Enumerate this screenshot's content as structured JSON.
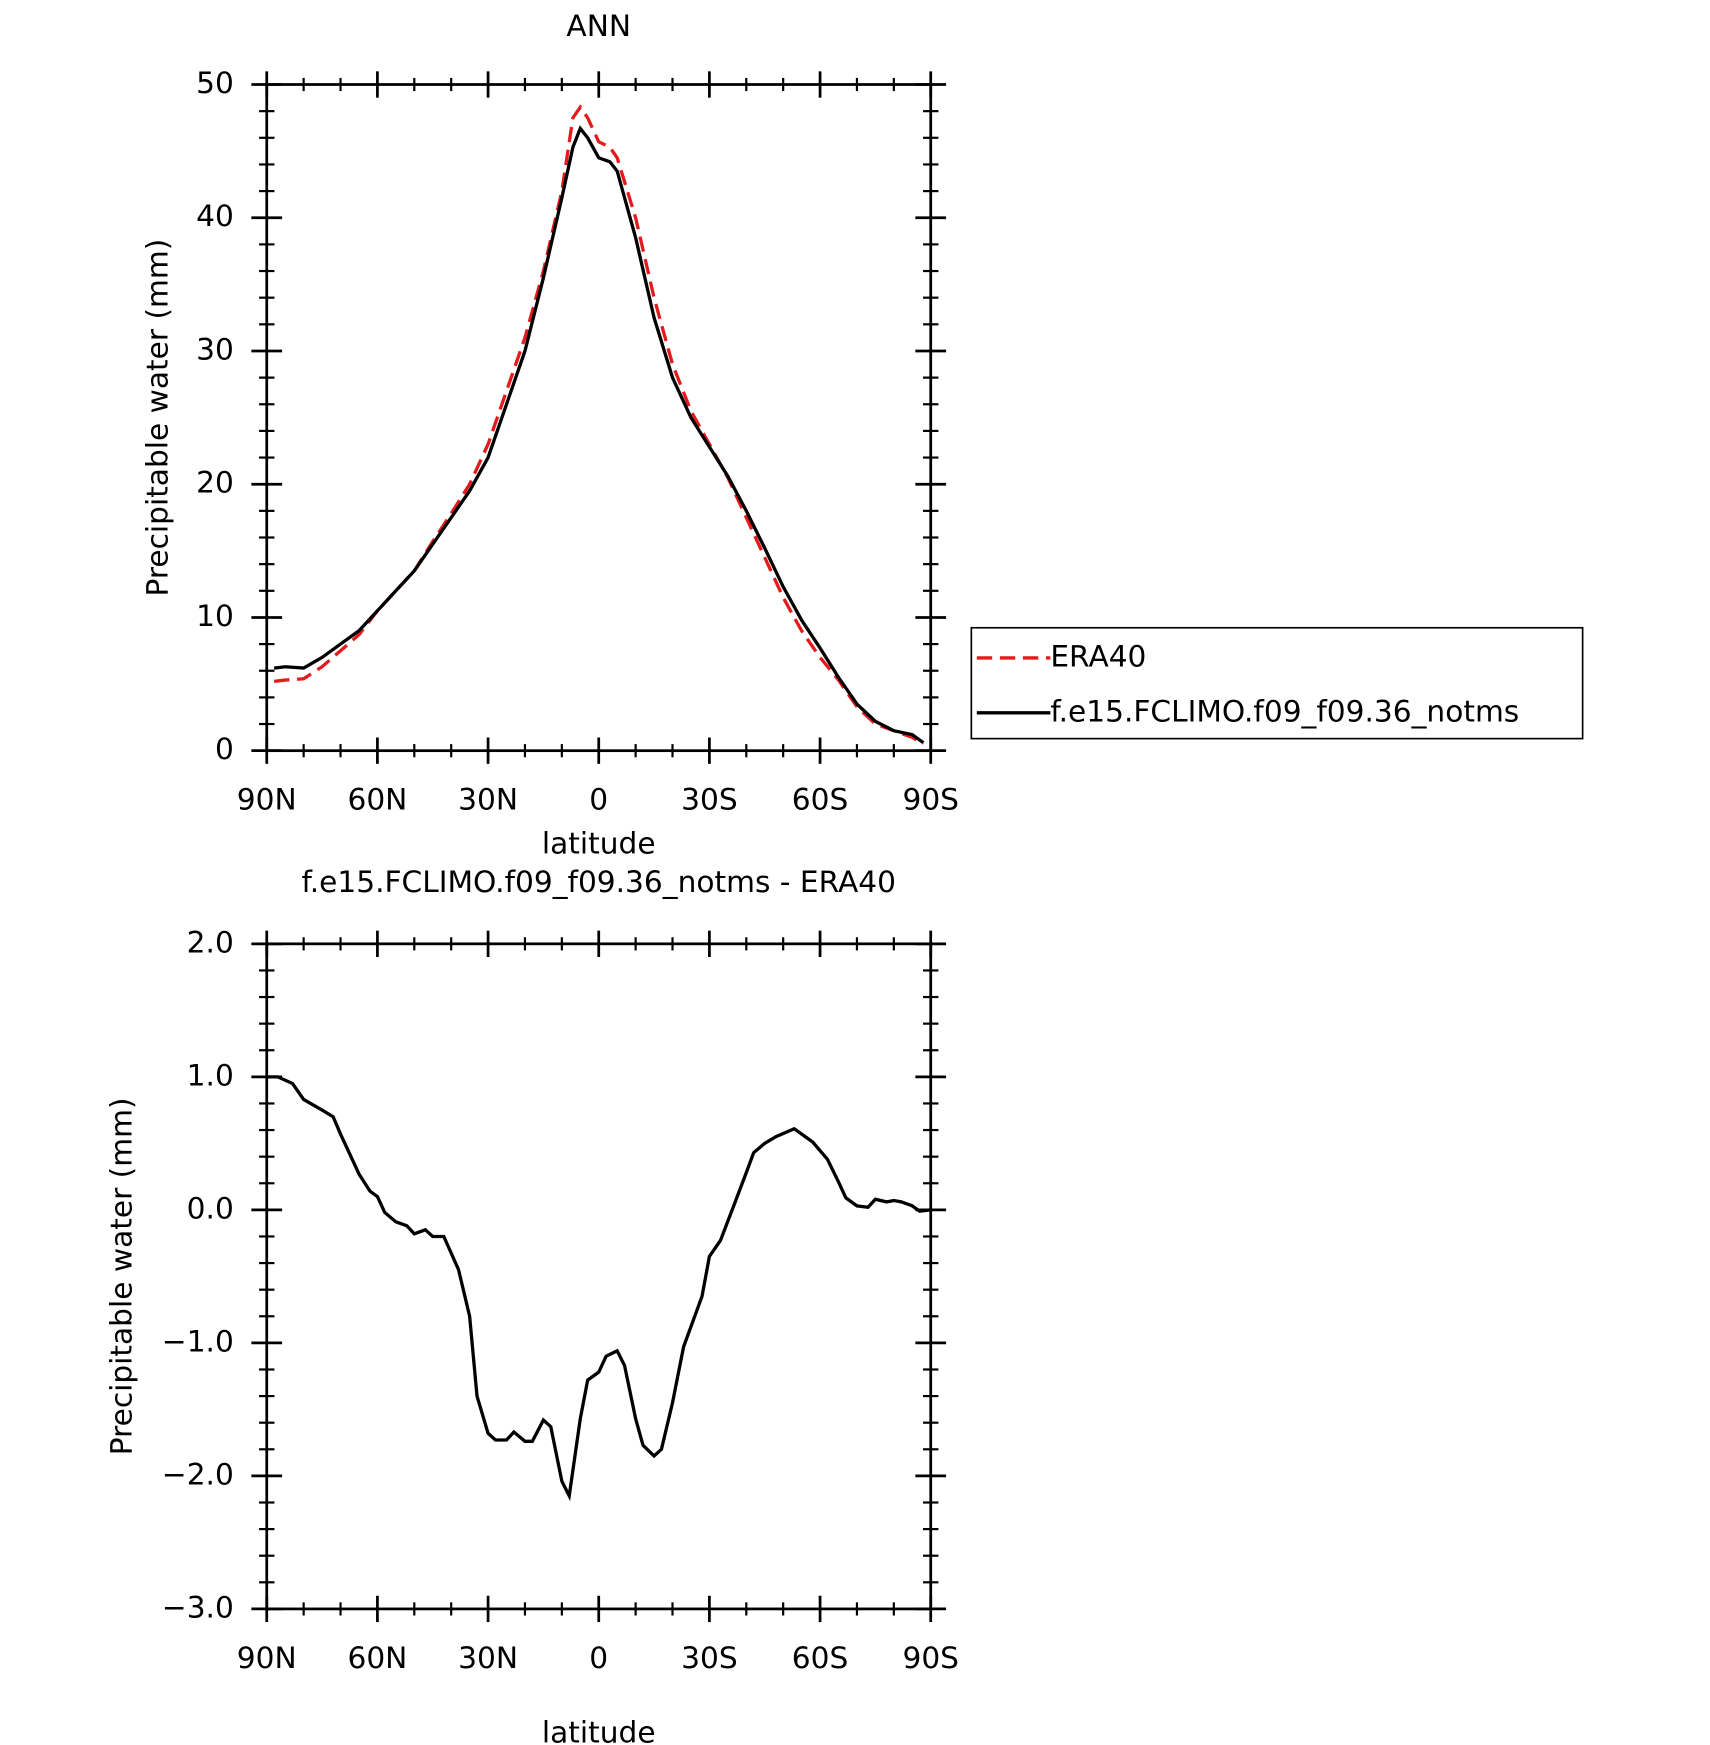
{
  "chart_data": [
    {
      "type": "line",
      "title": "ANN",
      "xlabel": "latitude",
      "ylabel": "Precipitable water (mm)",
      "xlim": [
        90,
        -90
      ],
      "xticks": [
        {
          "value": 90,
          "label": "90N"
        },
        {
          "value": 60,
          "label": "60N"
        },
        {
          "value": 30,
          "label": "30N"
        },
        0,
        {
          "value": -30,
          "label": "30S"
        },
        {
          "value": -60,
          "label": "60S"
        },
        {
          "value": -90,
          "label": "90S"
        }
      ],
      "ylim": [
        0,
        50
      ],
      "yticks": [
        0,
        10,
        20,
        30,
        40,
        50
      ],
      "legend": "right",
      "x": [
        88,
        85,
        80,
        75,
        70,
        65,
        60,
        55,
        50,
        45,
        40,
        35,
        30,
        25,
        20,
        15,
        10,
        7,
        5,
        3,
        0,
        -3,
        -5,
        -10,
        -15,
        -20,
        -25,
        -30,
        -35,
        -40,
        -45,
        -50,
        -55,
        -60,
        -65,
        -70,
        -75,
        -80,
        -85,
        -88
      ],
      "series": [
        {
          "name": "ERA40",
          "color": "#e41a1c",
          "dashed": true,
          "values": [
            5.2,
            5.3,
            5.4,
            6.3,
            7.5,
            8.7,
            10.5,
            12.0,
            13.5,
            15.7,
            17.8,
            20.0,
            23.0,
            27.0,
            31.0,
            36.0,
            42.0,
            47.5,
            48.3,
            47.5,
            45.7,
            45.3,
            44.5,
            40.0,
            34.0,
            29.0,
            25.5,
            23.0,
            20.5,
            17.5,
            14.5,
            11.5,
            9.0,
            7.0,
            5.3,
            3.3,
            2.0,
            1.5,
            1.0,
            0.5
          ]
        },
        {
          "name": "f.e15.FCLIMO.f09_f09.36_notms",
          "color": "#000000",
          "dashed": false,
          "values": [
            6.2,
            6.3,
            6.2,
            7.0,
            8.0,
            9.0,
            10.5,
            12.0,
            13.5,
            15.5,
            17.5,
            19.5,
            22.0,
            26.0,
            30.0,
            35.5,
            41.5,
            45.3,
            46.7,
            46.0,
            44.5,
            44.2,
            43.5,
            38.5,
            32.5,
            28.0,
            25.0,
            22.8,
            20.6,
            18.0,
            15.2,
            12.3,
            9.8,
            7.7,
            5.5,
            3.5,
            2.2,
            1.5,
            1.2,
            0.6
          ]
        }
      ]
    },
    {
      "type": "line",
      "title": "f.e15.FCLIMO.f09_f09.36_notms - ERA40",
      "xlabel": "latitude",
      "ylabel": "Precipitable water (mm)",
      "xlim": [
        90,
        -90
      ],
      "xticks": [
        {
          "value": 90,
          "label": "90N"
        },
        {
          "value": 60,
          "label": "60N"
        },
        {
          "value": 30,
          "label": "30N"
        },
        0,
        {
          "value": -30,
          "label": "30S"
        },
        {
          "value": -60,
          "label": "60S"
        },
        {
          "value": -90,
          "label": "90S"
        }
      ],
      "ylim": [
        -3,
        2
      ],
      "yticks": [
        {
          "value": -3,
          "label": "−3.0"
        },
        {
          "value": -2,
          "label": "−2.0"
        },
        {
          "value": -1,
          "label": "−1.0"
        },
        {
          "value": 0,
          "label": "0.0"
        },
        {
          "value": 1,
          "label": "1.0"
        },
        {
          "value": 2,
          "label": "2.0"
        }
      ],
      "color": "#000000",
      "x": [
        90,
        87,
        83,
        80,
        75,
        72,
        70,
        65,
        62,
        60,
        58,
        55,
        52,
        50,
        47,
        45,
        42,
        38,
        35,
        33,
        30,
        28,
        25,
        23,
        20,
        18,
        15,
        13,
        10,
        8,
        5,
        3,
        0,
        -2,
        -5,
        -7,
        -10,
        -12,
        -15,
        -17,
        -20,
        -23,
        -28,
        -30,
        -33,
        -37,
        -40,
        -42,
        -45,
        -48,
        -53,
        -58,
        -62,
        -65,
        -67,
        -70,
        -73,
        -75,
        -78,
        -80,
        -82,
        -85,
        -87,
        -90
      ],
      "values": [
        1.0,
        1.0,
        0.95,
        0.83,
        0.75,
        0.7,
        0.57,
        0.27,
        0.14,
        0.1,
        -0.02,
        -0.09,
        -0.12,
        -0.18,
        -0.15,
        -0.2,
        -0.2,
        -0.45,
        -0.8,
        -1.4,
        -1.68,
        -1.73,
        -1.73,
        -1.67,
        -1.74,
        -1.74,
        -1.58,
        -1.63,
        -2.04,
        -2.15,
        -1.57,
        -1.28,
        -1.22,
        -1.1,
        -1.06,
        -1.17,
        -1.57,
        -1.77,
        -1.85,
        -1.8,
        -1.45,
        -1.03,
        -0.65,
        -0.35,
        -0.23,
        0.06,
        0.28,
        0.43,
        0.5,
        0.55,
        0.61,
        0.51,
        0.38,
        0.21,
        0.09,
        0.03,
        0.02,
        0.08,
        0.06,
        0.07,
        0.06,
        0.03,
        -0.01,
        0.0
      ]
    }
  ]
}
